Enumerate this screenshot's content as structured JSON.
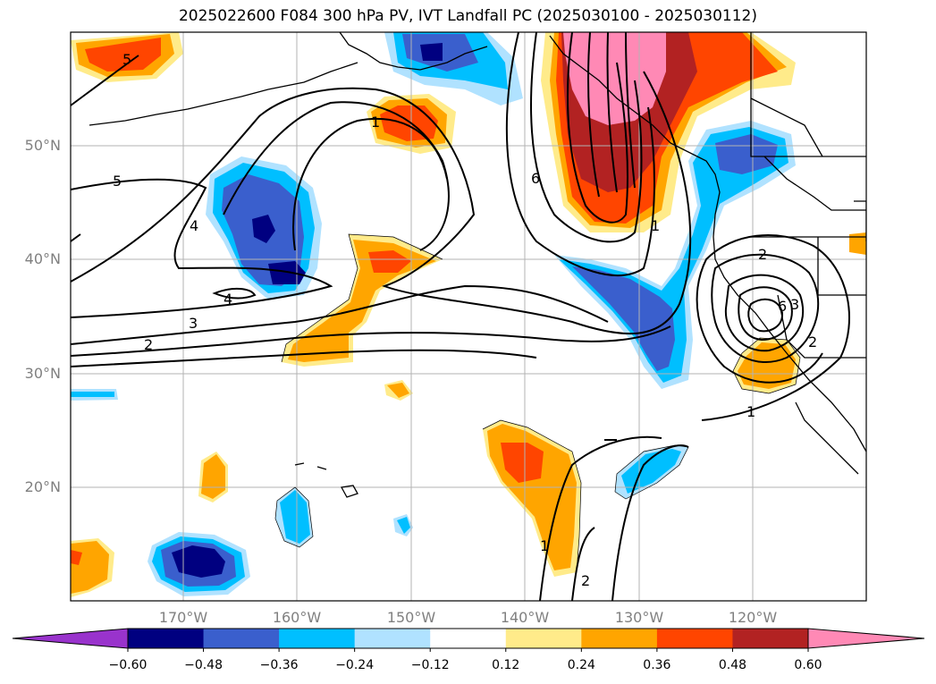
{
  "title": "2025022600 F084 300 hPa PV, IVT Landfall PC (2025030100 - 2025030112)",
  "lat_labels": [
    "50°N",
    "40°N",
    "30°N",
    "20°N"
  ],
  "lon_labels": [
    "170°W",
    "160°W",
    "150°W",
    "140°W",
    "130°W",
    "120°W"
  ],
  "colorbar": {
    "ticks": [
      "−0.60",
      "−0.48",
      "−0.36",
      "−0.24",
      "−0.12",
      "0.12",
      "0.24",
      "0.36",
      "0.48",
      "0.60"
    ],
    "colors": [
      "#9933cc",
      "#000080",
      "#3a5fcd",
      "#00bfff",
      "#b0e2ff",
      "#ffffff",
      "#ffeb8a",
      "#ffa500",
      "#ff4500",
      "#b22222",
      "#ff89b5"
    ]
  },
  "contour_labels": [
    "5",
    "5",
    "4",
    "4",
    "3",
    "2",
    "1",
    "6",
    "1",
    "2",
    "6",
    "3",
    "2",
    "1",
    "1",
    "2"
  ],
  "colors": {
    "neg_light": "#b0e2ff",
    "neg_mid": "#00bfff",
    "neg_blue": "#3a5fcd",
    "neg_dark": "#000080",
    "pos_light": "#ffeb8a",
    "pos_orange": "#ffa500",
    "pos_red": "#ff4500",
    "pos_dark": "#b22222",
    "pos_pink": "#ff89b5"
  }
}
